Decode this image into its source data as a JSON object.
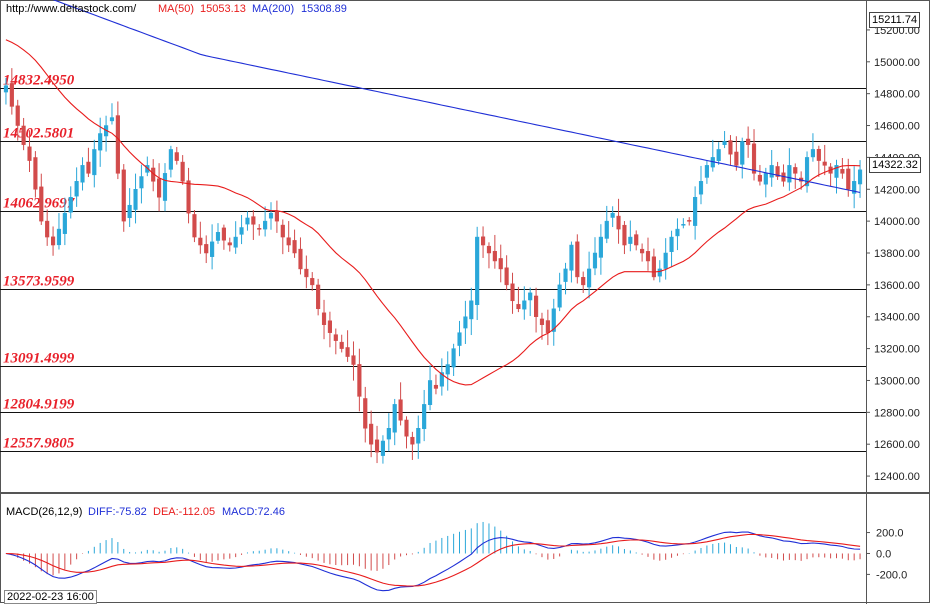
{
  "header": {
    "site": "http://www.deltastock.com/",
    "ma50_label": "MA(50)",
    "ma50_value": "15053.13",
    "ma200_label": "MA(200)",
    "ma200_value": "15308.89",
    "top_price_box": "15211.74",
    "last_price_box": "14322.32",
    "date_label": "2022-02-23 16:00"
  },
  "macd_header": {
    "name": "MACD(26,12,9)",
    "diff": "DIFF:-75.82",
    "dea": "DEA:-112.05",
    "macd": "MACD:72.46"
  },
  "colors": {
    "up": "#2aa7d9",
    "down": "#d24b4b",
    "ma50": "#e81c1c",
    "ma200": "#1f2fd6",
    "level_text": "#e8202a"
  },
  "chart_data": [
    {
      "type": "candlestick",
      "title": "",
      "ylim": [
        12300,
        15300
      ],
      "yticks": [
        "15200.00",
        "15000.00",
        "14800.00",
        "14600.00",
        "14400.00",
        "14200.00",
        "14000.00",
        "13800.00",
        "13600.00",
        "13400.00",
        "13200.00",
        "13000.00",
        "12800.00",
        "12600.00",
        "12400.00"
      ],
      "levels": [
        {
          "value": 14832.495,
          "label": "14832.4950"
        },
        {
          "value": 14502.5801,
          "label": "14502.5801"
        },
        {
          "value": 14062.9697,
          "label": "14062.9697"
        },
        {
          "value": 13573.9599,
          "label": "13573.9599"
        },
        {
          "value": 13091.4999,
          "label": "13091.4999"
        },
        {
          "value": 12804.9199,
          "label": "12804.9199"
        },
        {
          "value": 12557.9805,
          "label": "12557.9805"
        }
      ],
      "close": [
        14850,
        14720,
        14600,
        14480,
        14380,
        14200,
        14000,
        13900,
        13850,
        13950,
        14050,
        14150,
        14250,
        14350,
        14300,
        14450,
        14550,
        14600,
        14650,
        14300,
        14000,
        14100,
        14200,
        14280,
        14350,
        14250,
        14150,
        14300,
        14450,
        14380,
        14250,
        14050,
        13900,
        13850,
        13800,
        13870,
        13930,
        13880,
        13850,
        13900,
        13960,
        14020,
        13980,
        13950,
        14000,
        14050,
        14000,
        13900,
        13850,
        13800,
        13700,
        13650,
        13600,
        13450,
        13350,
        13300,
        13250,
        13200,
        13150,
        13100,
        12900,
        12700,
        12600,
        12550,
        12620,
        12700,
        12850,
        12750,
        12650,
        12600,
        12700,
        12850,
        13000,
        12950,
        13050,
        13100,
        13200,
        13300,
        13400,
        13500,
        13900,
        13850,
        13800,
        13750,
        13700,
        13600,
        13500,
        13450,
        13500,
        13550,
        13400,
        13350,
        13300,
        13450,
        13600,
        13700,
        13850,
        13650,
        13600,
        13700,
        13800,
        13900,
        14000,
        14050,
        13950,
        13850,
        13900,
        13850,
        13800,
        13750,
        13650,
        13700,
        13800,
        13900,
        13950,
        13980,
        14000,
        14150,
        14250,
        14350,
        14400,
        14450,
        14500,
        14420,
        14350,
        14500,
        14480,
        14300,
        14250,
        14300,
        14350,
        14280,
        14250,
        14350,
        14300,
        14250,
        14400,
        14450,
        14380,
        14350,
        14300,
        14350,
        14300,
        14200,
        14250,
        14322
      ]
    },
    {
      "type": "macd",
      "title": "",
      "ylim": [
        -330,
        320
      ],
      "yticks": [
        "200.0",
        "0.0",
        "-200.0"
      ]
    }
  ]
}
